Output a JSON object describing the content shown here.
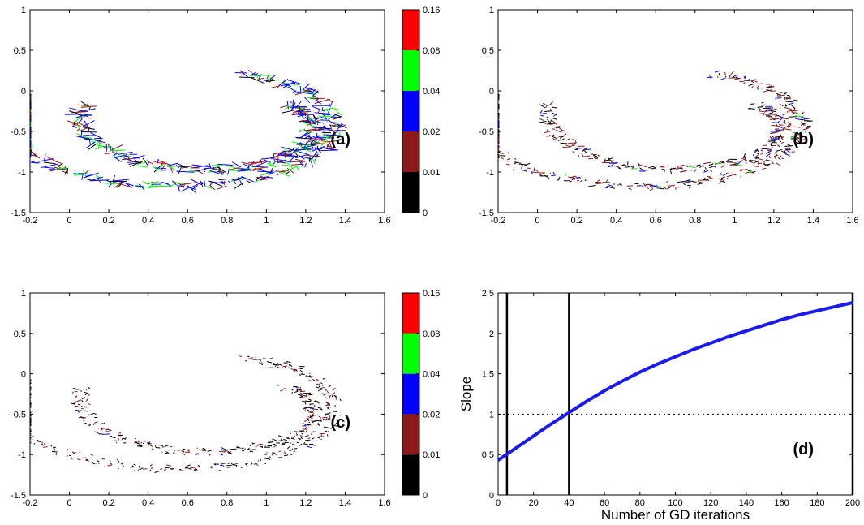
{
  "colors": {
    "black": "#000000",
    "darkred": "#8b1a1a",
    "blue": "#0000ff",
    "green": "#00ff00",
    "red": "#ff0000",
    "curve": "#1a1aee"
  },
  "chart_data": [
    {
      "type": "scatter",
      "panel_label": "(a)",
      "description_kind": "oriented segment field on spiral",
      "xlim": [
        -0.2,
        1.6
      ],
      "ylim": [
        -1.5,
        1
      ],
      "xticks": [
        "-0.2",
        "0",
        "0.2",
        "0.4",
        "0.6",
        "0.8",
        "1",
        "1.2",
        "1.4",
        "1.6"
      ],
      "yticks": [
        "-1.5",
        "-1",
        "-0.5",
        "0",
        "0.5",
        "1"
      ],
      "length_scale": 1.0,
      "colormix": [
        0.12,
        0.2,
        0.45,
        0.2,
        0.03
      ],
      "colorbar": {
        "levels": [
          "0",
          "0.01",
          "0.02",
          "0.04",
          "0.08",
          "0.16"
        ],
        "colors": [
          "#000000",
          "#8b1a1a",
          "#0000ff",
          "#00ff00",
          "#ff0000"
        ]
      }
    },
    {
      "type": "scatter",
      "panel_label": "(b)",
      "description_kind": "oriented segment field on spiral",
      "xlim": [
        -0.2,
        1.6
      ],
      "ylim": [
        -1.5,
        1
      ],
      "xticks": [
        "-0.2",
        "0",
        "0.2",
        "0.4",
        "0.6",
        "0.8",
        "1",
        "1.2",
        "1.4",
        "1.6"
      ],
      "yticks": [
        "-1.5",
        "-1",
        "-0.5",
        "0",
        "0.5",
        "1"
      ],
      "length_scale": 0.45,
      "colormix": [
        0.35,
        0.5,
        0.12,
        0.03,
        0.0
      ]
    },
    {
      "type": "scatter",
      "panel_label": "(c)",
      "description_kind": "oriented segment field on spiral",
      "xlim": [
        -0.2,
        1.6
      ],
      "ylim": [
        -1.5,
        1
      ],
      "xticks": [
        "-0.2",
        "0",
        "0.2",
        "0.4",
        "0.6",
        "0.8",
        "1",
        "1.2",
        "1.4",
        "1.6"
      ],
      "yticks": [
        "-1.5",
        "-1",
        "-0.5",
        "0",
        "0.5",
        "1"
      ],
      "length_scale": 0.3,
      "colormix": [
        0.6,
        0.35,
        0.05,
        0.0,
        0.0
      ],
      "colorbar": {
        "levels": [
          "0",
          "0.01",
          "0.02",
          "0.04",
          "0.08",
          "0.16"
        ],
        "colors": [
          "#000000",
          "#8b1a1a",
          "#0000ff",
          "#00ff00",
          "#ff0000"
        ]
      }
    },
    {
      "type": "line",
      "panel_label": "(d)",
      "xlabel": "Number of GD iterations",
      "ylabel": "Slope",
      "xlim": [
        0,
        200
      ],
      "ylim": [
        0,
        2.5
      ],
      "xticks": [
        "0",
        "20",
        "40",
        "60",
        "80",
        "100",
        "120",
        "140",
        "160",
        "180",
        "200"
      ],
      "yticks": [
        "0",
        "0.5",
        "1",
        "1.5",
        "2",
        "2.5"
      ],
      "series": [
        {
          "x": [
            0,
            10,
            20,
            30,
            40,
            50,
            60,
            70,
            80,
            90,
            100,
            110,
            120,
            130,
            140,
            150,
            160,
            170,
            180,
            190,
            200
          ],
          "values": [
            0.43,
            0.58,
            0.73,
            0.88,
            1.02,
            1.16,
            1.29,
            1.41,
            1.52,
            1.62,
            1.71,
            1.8,
            1.88,
            1.96,
            2.03,
            2.1,
            2.17,
            2.23,
            2.28,
            2.33,
            2.38
          ]
        }
      ],
      "hline_y": 1,
      "vlines_x": [
        5,
        40,
        200
      ]
    }
  ]
}
